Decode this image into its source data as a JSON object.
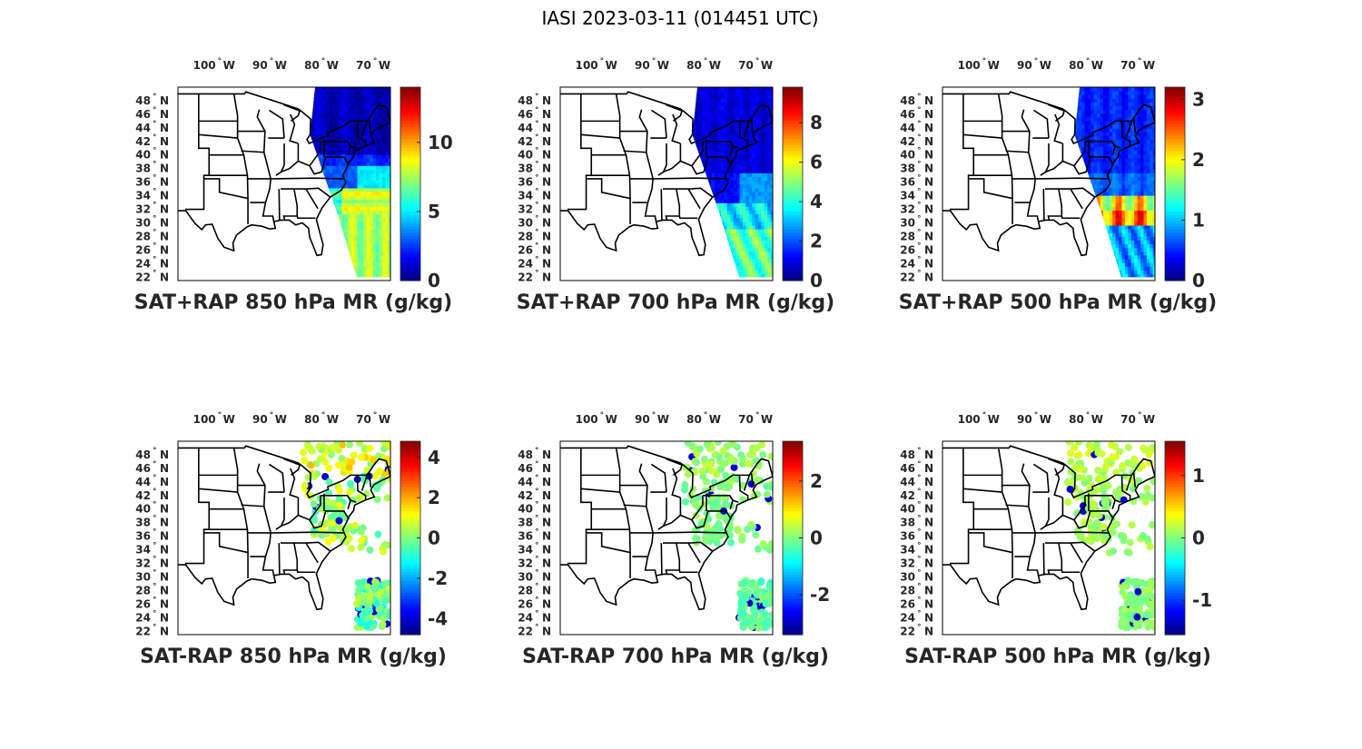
{
  "figure": {
    "title": "IASI 2023-03-11 (014451 UTC)"
  },
  "colormap": "jet",
  "colors": {
    "land_fill": "#ffffff",
    "border": "#000000",
    "text": "#262626"
  },
  "axes_labels": {
    "lon_ticks": [
      {
        "deg": "100",
        "dir": "W",
        "lon": -100
      },
      {
        "deg": "90",
        "dir": "W",
        "lon": -90
      },
      {
        "deg": "80",
        "dir": "W",
        "lon": -80
      },
      {
        "deg": "70",
        "dir": "W",
        "lon": -70
      }
    ],
    "lat_ticks": [
      {
        "deg": "48",
        "dir": "N",
        "lat": 48
      },
      {
        "deg": "46",
        "dir": "N",
        "lat": 46
      },
      {
        "deg": "44",
        "dir": "N",
        "lat": 44
      },
      {
        "deg": "42",
        "dir": "N",
        "lat": 42
      },
      {
        "deg": "40",
        "dir": "N",
        "lat": 40
      },
      {
        "deg": "38",
        "dir": "N",
        "lat": 38
      },
      {
        "deg": "36",
        "dir": "N",
        "lat": 36
      },
      {
        "deg": "34",
        "dir": "N",
        "lat": 34
      },
      {
        "deg": "32",
        "dir": "N",
        "lat": 32
      },
      {
        "deg": "30",
        "dir": "N",
        "lat": 30
      },
      {
        "deg": "28",
        "dir": "N",
        "lat": 28
      },
      {
        "deg": "26",
        "dir": "N",
        "lat": 26
      },
      {
        "deg": "24",
        "dir": "N",
        "lat": 24
      },
      {
        "deg": "22",
        "dir": "N",
        "lat": 22
      }
    ],
    "degree_symbol": "°"
  },
  "map_extent": {
    "lon": [
      -108,
      -67
    ],
    "lat": [
      21.5,
      50
    ]
  },
  "panels": [
    {
      "id": "sat-rap-sum-850",
      "title": "SAT+RAP 850 hPa MR (g/kg)",
      "kind": "swath",
      "clim": [
        0,
        14
      ],
      "ticks": [
        "0",
        "5",
        "10"
      ],
      "tick_values": [
        0,
        5,
        10
      ],
      "pattern": "sum850"
    },
    {
      "id": "sat-rap-sum-700",
      "title": "SAT+RAP 700 hPa MR (g/kg)",
      "kind": "swath",
      "clim": [
        0,
        9.8
      ],
      "ticks": [
        "0",
        "2",
        "4",
        "6",
        "8"
      ],
      "tick_values": [
        0,
        2,
        4,
        6,
        8
      ],
      "pattern": "sum700"
    },
    {
      "id": "sat-rap-sum-500",
      "title": "SAT+RAP 500 hPa MR (g/kg)",
      "kind": "swath",
      "clim": [
        0,
        3.2
      ],
      "ticks": [
        "0",
        "1",
        "2",
        "3"
      ],
      "tick_values": [
        0,
        1,
        2,
        3
      ],
      "pattern": "sum500"
    },
    {
      "id": "sat-rap-diff-850",
      "title": "SAT-RAP 850 hPa MR (g/kg)",
      "kind": "diff",
      "clim": [
        -4.8,
        4.8
      ],
      "ticks": [
        "-4",
        "-2",
        "0",
        "2",
        "4"
      ],
      "tick_values": [
        -4,
        -2,
        0,
        2,
        4
      ],
      "pattern": "diff850"
    },
    {
      "id": "sat-rap-diff-700",
      "title": "SAT-RAP 700 hPa MR (g/kg)",
      "kind": "diff",
      "clim": [
        -3.4,
        3.4
      ],
      "ticks": [
        "-2",
        "0",
        "2"
      ],
      "tick_values": [
        -2,
        0,
        2
      ],
      "pattern": "diff700"
    },
    {
      "id": "sat-rap-diff-500",
      "title": "SAT-RAP 500 hPa MR (g/kg)",
      "kind": "diff",
      "clim": [
        -1.55,
        1.55
      ],
      "ticks": [
        "-1",
        "0",
        "1"
      ],
      "tick_values": [
        -1,
        0,
        1
      ],
      "pattern": "diff500"
    }
  ]
}
